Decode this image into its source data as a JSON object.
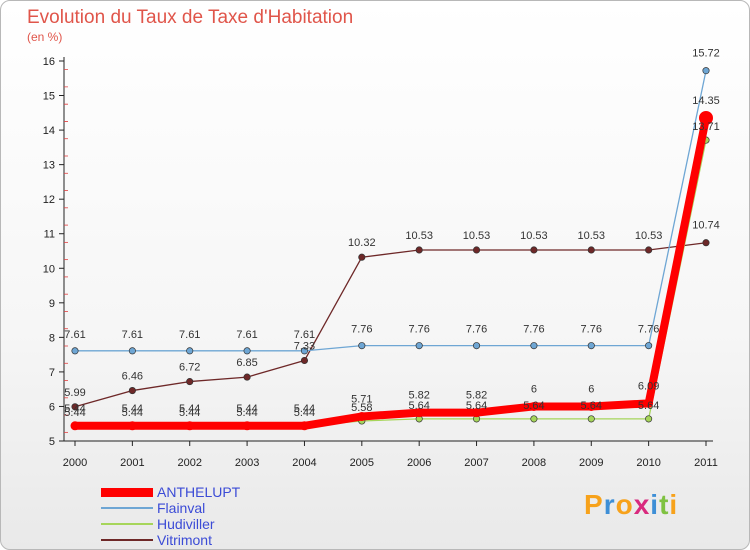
{
  "chart_data": {
    "type": "line",
    "title": "Evolution du Taux de Taxe d'Habitation",
    "subtitle": "(en %)",
    "x": [
      "2000",
      "2001",
      "2002",
      "2003",
      "2004",
      "2005",
      "2006",
      "2007",
      "2008",
      "2009",
      "2010",
      "2011"
    ],
    "ylim": [
      5,
      16
    ],
    "yticks": [
      5,
      6,
      7,
      8,
      9,
      10,
      11,
      12,
      13,
      14,
      15,
      16
    ],
    "grid": false,
    "legend_position": "bottom-left",
    "series": [
      {
        "name": "ANTHELUPT",
        "color": "#ff0000",
        "values": [
          5.44,
          5.44,
          5.44,
          5.44,
          5.44,
          5.71,
          5.82,
          5.82,
          6,
          6,
          6.09,
          14.35
        ],
        "labels": [
          "5.44",
          "5.44",
          "5.44",
          "5.44",
          "5.44",
          "5.71",
          "5.82",
          "5.82",
          "6",
          "6",
          "6.09",
          "14.35"
        ]
      },
      {
        "name": "Flainval",
        "color": "#6ea6d4",
        "values": [
          7.61,
          7.61,
          7.61,
          7.61,
          7.61,
          7.76,
          7.76,
          7.76,
          7.76,
          7.76,
          7.76,
          15.72
        ],
        "labels": [
          "7.61",
          "7.61",
          "7.61",
          "7.61",
          "7.61",
          "7.76",
          "7.76",
          "7.76",
          "7.76",
          "7.76",
          "7.76",
          "15.72"
        ]
      },
      {
        "name": "Hudiviller",
        "color": "#a6d55a",
        "values": [
          5.44,
          5.44,
          5.44,
          5.44,
          5.44,
          5.58,
          5.64,
          5.64,
          5.64,
          5.64,
          5.64,
          13.71
        ],
        "labels": [
          "5.44",
          "5.44",
          "5.44",
          "5.44",
          "5.44",
          "5.58",
          "5.64",
          "5.64",
          "5.64",
          "5.64",
          "5.64",
          "13.71"
        ]
      },
      {
        "name": "Vitrimont",
        "color": "#6e2828",
        "values": [
          5.99,
          6.46,
          6.72,
          6.85,
          7.33,
          10.32,
          10.53,
          10.53,
          10.53,
          10.53,
          10.53,
          10.74
        ],
        "labels": [
          "5.99",
          "6.46",
          "6.72",
          "6.85",
          "7.33",
          "10.32",
          "10.53",
          "10.53",
          "10.53",
          "10.53",
          "10.53",
          "10.74"
        ]
      }
    ]
  },
  "legend": {
    "items": [
      {
        "label": "ANTHELUPT",
        "color": "#ff0000"
      },
      {
        "label": "Flainval",
        "color": "#6ea6d4"
      },
      {
        "label": "Hudiviller",
        "color": "#a6d55a"
      },
      {
        "label": "Vitrimont",
        "color": "#6e2828"
      }
    ]
  },
  "logo": {
    "letters": [
      "P",
      "r",
      "o",
      "x",
      "i",
      "t",
      "i"
    ],
    "colors": [
      "#f7a21b",
      "#3e8fd6",
      "#f7a21b",
      "#d92a7e",
      "#3e8fd6",
      "#7fc241",
      "#f7a21b"
    ]
  }
}
